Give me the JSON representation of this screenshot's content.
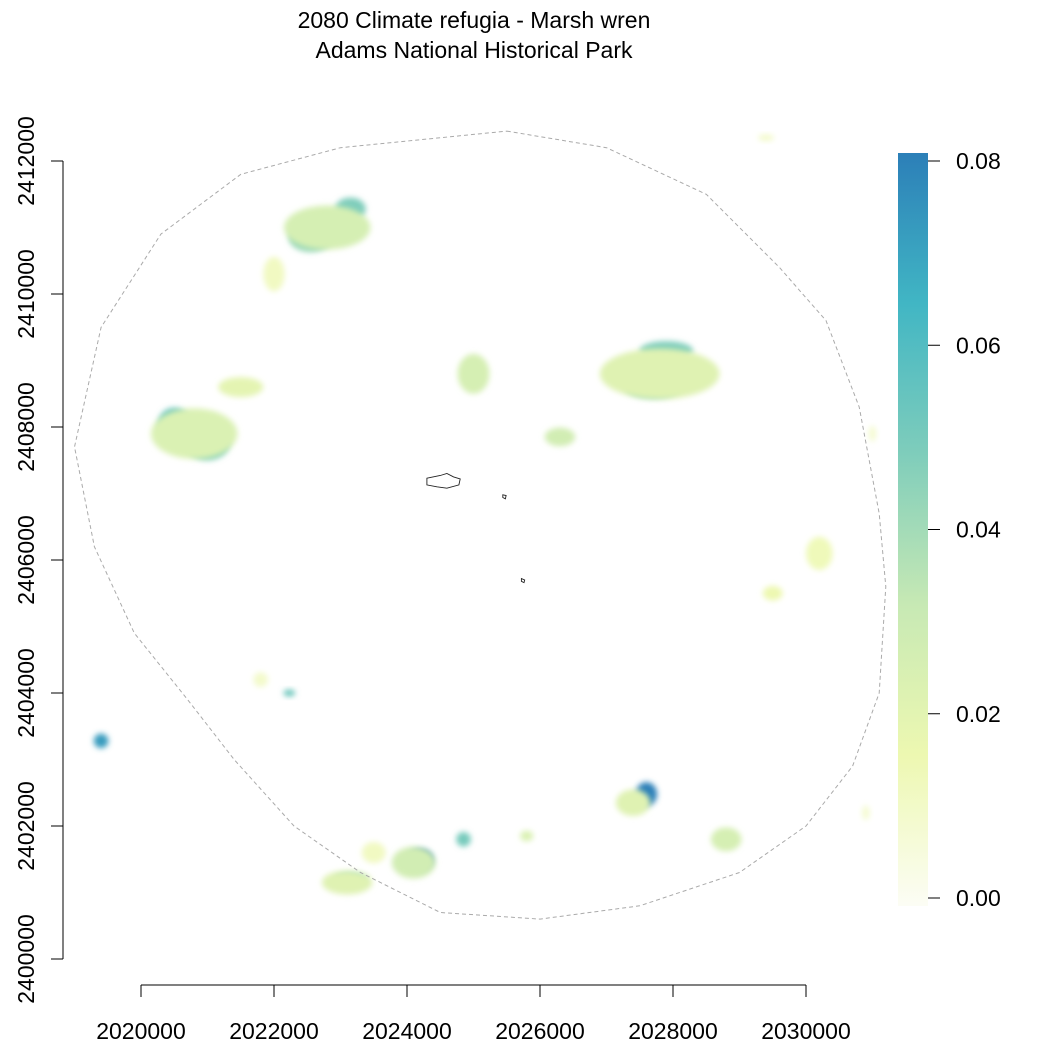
{
  "title": "2080 Climate refugia - Marsh wren",
  "subtitle": "Adams National Historical Park",
  "x_axis": {
    "ticks": [
      2020000,
      2022000,
      2024000,
      2026000,
      2028000,
      2030000
    ],
    "labels": [
      "2020000",
      "2022000",
      "2024000",
      "2026000",
      "2028000",
      "2030000"
    ],
    "range": [
      2018000,
      2031900
    ]
  },
  "y_axis": {
    "ticks": [
      2400000,
      2402000,
      2404000,
      2406000,
      2408000,
      2410000,
      2412000
    ],
    "labels": [
      "2400000",
      "2402000",
      "2404000",
      "2406000",
      "2408000",
      "2410000",
      "2412000"
    ],
    "range": [
      2400000,
      2412600
    ]
  },
  "legend": {
    "ticks": [
      0.0,
      0.02,
      0.04,
      0.06,
      0.08
    ],
    "labels": [
      "0.00",
      "0.02",
      "0.04",
      "0.06",
      "0.08"
    ],
    "range": [
      0.0,
      0.08
    ],
    "colors": [
      "#fcfdf5",
      "#edf8b1",
      "#c7e9b4",
      "#7fcdbb",
      "#41b6c4",
      "#2c7fb8"
    ]
  },
  "colors": {
    "boundary": "#aaaaaa",
    "park_outline": "#222222",
    "axis": "#000000"
  },
  "chart_data": {
    "type": "heatmap",
    "title": "2080 Climate refugia - Marsh wren\nAdams National Historical Park",
    "xlabel": "",
    "ylabel": "",
    "xlim": [
      2018000,
      2031900
    ],
    "ylim": [
      2400000,
      2412600
    ],
    "value_range": [
      0.0,
      0.08
    ],
    "grid": false,
    "legend_position": "right",
    "study_boundary": [
      [
        2025500,
        2412450
      ],
      [
        2027000,
        2412200
      ],
      [
        2028500,
        2411500
      ],
      [
        2029600,
        2410400
      ],
      [
        2030300,
        2409600
      ],
      [
        2030800,
        2408300
      ],
      [
        2031100,
        2406700
      ],
      [
        2031200,
        2405600
      ],
      [
        2031100,
        2404000
      ],
      [
        2030700,
        2402900
      ],
      [
        2030000,
        2402000
      ],
      [
        2029000,
        2401300
      ],
      [
        2027500,
        2400800
      ],
      [
        2026000,
        2400600
      ],
      [
        2024500,
        2400700
      ],
      [
        2023300,
        2401300
      ],
      [
        2022300,
        2402000
      ],
      [
        2021400,
        2403000
      ],
      [
        2020700,
        2403900
      ],
      [
        2019900,
        2404900
      ],
      [
        2019300,
        2406200
      ],
      [
        2019000,
        2407700
      ],
      [
        2019400,
        2409500
      ],
      [
        2020300,
        2410900
      ],
      [
        2021500,
        2411800
      ],
      [
        2023000,
        2412200
      ],
      [
        2025500,
        2412450
      ]
    ],
    "park_units": [
      [
        [
          2024300,
          2407230
        ],
        [
          2024500,
          2407270
        ],
        [
          2024600,
          2407300
        ],
        [
          2024700,
          2407250
        ],
        [
          2024800,
          2407220
        ],
        [
          2024780,
          2407130
        ],
        [
          2024600,
          2407080
        ],
        [
          2024450,
          2407100
        ],
        [
          2024300,
          2407130
        ],
        [
          2024300,
          2407230
        ]
      ],
      [
        [
          2025440,
          2406980
        ],
        [
          2025490,
          2406970
        ],
        [
          2025480,
          2406920
        ],
        [
          2025440,
          2406940
        ],
        [
          2025440,
          2406980
        ]
      ],
      [
        [
          2025720,
          2405720
        ],
        [
          2025770,
          2405700
        ],
        [
          2025760,
          2405660
        ],
        [
          2025720,
          2405680
        ],
        [
          2025720,
          2405720
        ]
      ]
    ],
    "patches": [
      {
        "x": 2023150,
        "y": 2411280,
        "rx": 230,
        "ry": 170,
        "value": 0.048
      },
      {
        "x": 2022550,
        "y": 2410850,
        "rx": 330,
        "ry": 220,
        "value": 0.042
      },
      {
        "x": 2022800,
        "y": 2411000,
        "rx": 650,
        "ry": 330,
        "value": 0.026
      },
      {
        "x": 2022000,
        "y": 2410300,
        "rx": 160,
        "ry": 260,
        "value": 0.012
      },
      {
        "x": 2020500,
        "y": 2408050,
        "rx": 240,
        "ry": 240,
        "value": 0.052
      },
      {
        "x": 2021000,
        "y": 2407750,
        "rx": 330,
        "ry": 250,
        "value": 0.046
      },
      {
        "x": 2020800,
        "y": 2407900,
        "rx": 650,
        "ry": 380,
        "value": 0.024
      },
      {
        "x": 2021500,
        "y": 2408600,
        "rx": 340,
        "ry": 150,
        "value": 0.02
      },
      {
        "x": 2025000,
        "y": 2408800,
        "rx": 240,
        "ry": 300,
        "value": 0.026
      },
      {
        "x": 2027900,
        "y": 2409150,
        "rx": 400,
        "ry": 140,
        "value": 0.048
      },
      {
        "x": 2027700,
        "y": 2408600,
        "rx": 420,
        "ry": 170,
        "value": 0.044
      },
      {
        "x": 2027800,
        "y": 2408800,
        "rx": 900,
        "ry": 380,
        "value": 0.022
      },
      {
        "x": 2026300,
        "y": 2407850,
        "rx": 230,
        "ry": 140,
        "value": 0.028
      },
      {
        "x": 2030200,
        "y": 2406100,
        "rx": 200,
        "ry": 250,
        "value": 0.014
      },
      {
        "x": 2029500,
        "y": 2405500,
        "rx": 150,
        "ry": 110,
        "value": 0.016
      },
      {
        "x": 2022230,
        "y": 2404000,
        "rx": 90,
        "ry": 55,
        "value": 0.052
      },
      {
        "x": 2021800,
        "y": 2404200,
        "rx": 110,
        "ry": 110,
        "value": 0.01
      },
      {
        "x": 2019400,
        "y": 2403280,
        "rx": 110,
        "ry": 110,
        "value": 0.072
      },
      {
        "x": 2027600,
        "y": 2402480,
        "rx": 160,
        "ry": 180,
        "value": 0.08
      },
      {
        "x": 2027400,
        "y": 2402350,
        "rx": 260,
        "ry": 200,
        "value": 0.022
      },
      {
        "x": 2024200,
        "y": 2401500,
        "rx": 190,
        "ry": 150,
        "value": 0.08
      },
      {
        "x": 2024100,
        "y": 2401450,
        "rx": 330,
        "ry": 240,
        "value": 0.028
      },
      {
        "x": 2023150,
        "y": 2401200,
        "rx": 230,
        "ry": 80,
        "value": 0.06
      },
      {
        "x": 2023100,
        "y": 2401150,
        "rx": 380,
        "ry": 180,
        "value": 0.022
      },
      {
        "x": 2024850,
        "y": 2401800,
        "rx": 110,
        "ry": 110,
        "value": 0.05
      },
      {
        "x": 2025800,
        "y": 2401850,
        "rx": 100,
        "ry": 80,
        "value": 0.024
      },
      {
        "x": 2028800,
        "y": 2401800,
        "rx": 230,
        "ry": 180,
        "value": 0.026
      },
      {
        "x": 2023500,
        "y": 2401600,
        "rx": 180,
        "ry": 160,
        "value": 0.012
      },
      {
        "x": 2029400,
        "y": 2412350,
        "rx": 120,
        "ry": 50,
        "value": 0.01
      },
      {
        "x": 2031000,
        "y": 2407900,
        "rx": 60,
        "ry": 120,
        "value": 0.008
      },
      {
        "x": 2030900,
        "y": 2402200,
        "rx": 60,
        "ry": 110,
        "value": 0.008
      }
    ]
  }
}
